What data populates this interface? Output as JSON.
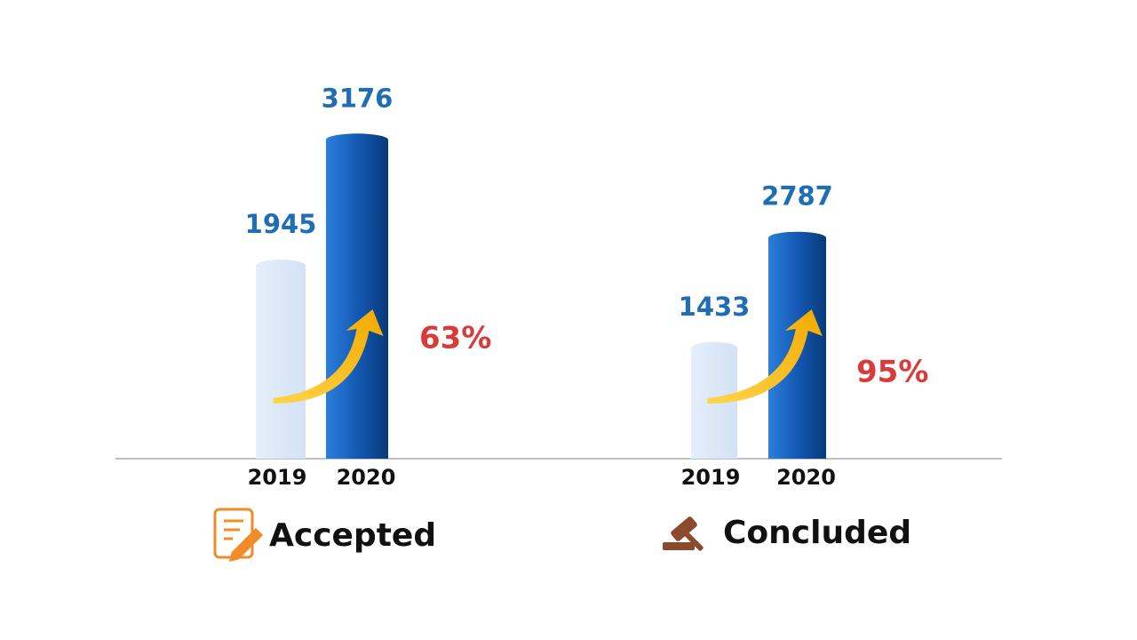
{
  "chart_data": [
    {
      "type": "bar",
      "title": "Accepted",
      "categories": [
        "2019",
        "2020"
      ],
      "values": [
        1945,
        3176
      ],
      "colors": [
        "#dce8f8",
        "#1565c0"
      ],
      "ylim": [
        0,
        3500
      ],
      "annotation": "63%"
    },
    {
      "type": "bar",
      "title": "Concluded",
      "categories": [
        "2019",
        "2020"
      ],
      "values": [
        1433,
        2787
      ],
      "colors": [
        "#dce8f8",
        "#1565c0"
      ],
      "ylim": [
        0,
        4400
      ],
      "annotation": "95%"
    }
  ]
}
